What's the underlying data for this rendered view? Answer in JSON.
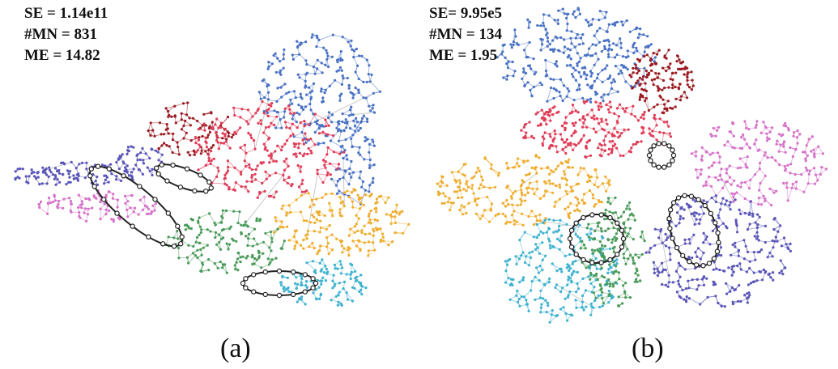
{
  "panels": [
    {
      "caption": "(a)",
      "stats": [
        "SE = 1.14e11",
        "#MN = 831",
        "ME = 14.82"
      ]
    },
    {
      "caption": "(b)",
      "stats": [
        "SE= 9.95e5",
        "#MN = 134",
        "ME = 1.95"
      ]
    }
  ],
  "colors": {
    "blue": "#4a72c4",
    "darkred": "#9b1b22",
    "red": "#e03c57",
    "orange": "#efad2e",
    "cyan": "#3fb2cf",
    "green": "#4a9b5a",
    "purple": "#5a55b8",
    "pink": "#d572c9",
    "edge": "#bdbdbd",
    "loop": "#222222"
  }
}
